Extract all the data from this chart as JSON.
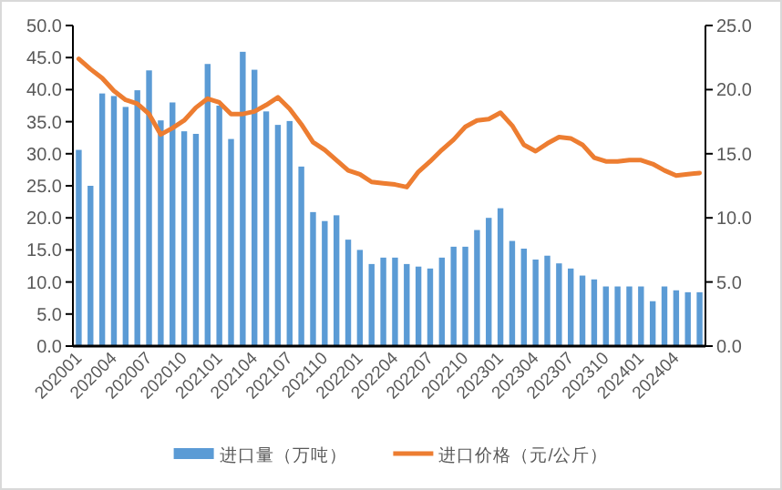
{
  "chart_data": {
    "type": "bar",
    "categories": [
      "202001",
      null,
      null,
      "202004",
      null,
      null,
      "202007",
      null,
      null,
      "202010",
      null,
      null,
      "202101",
      null,
      null,
      "202104",
      null,
      null,
      "202107",
      null,
      null,
      "202110",
      null,
      null,
      "202201",
      null,
      null,
      "202204",
      null,
      null,
      "202207",
      null,
      null,
      "202210",
      null,
      null,
      "202301",
      null,
      null,
      "202304",
      null,
      null,
      "202307",
      null,
      null,
      "202310",
      null,
      null,
      "202401",
      null,
      null,
      "202404",
      null,
      null
    ],
    "series": [
      {
        "name": "进口量（万吨）",
        "color": "#5b9bd5",
        "values": [
          30.6,
          25.0,
          39.4,
          39.0,
          37.3,
          39.9,
          43.0,
          35.2,
          38.0,
          33.5,
          33.1,
          44.0,
          37.5,
          32.3,
          45.9,
          43.1,
          36.6,
          34.5,
          35.1,
          28.0,
          20.9,
          19.5,
          20.4,
          16.6,
          15.0,
          12.8,
          13.8,
          13.8,
          12.8,
          12.4,
          12.1,
          13.8,
          15.5,
          15.5,
          18.1,
          20.0,
          21.5,
          16.4,
          15.2,
          13.5,
          14.1,
          12.9,
          12.1,
          11.0,
          10.4,
          9.3,
          9.3,
          9.3,
          9.3,
          7.0,
          9.3,
          8.7,
          8.4,
          8.4
        ]
      },
      {
        "name": "进口价格（元/公斤）",
        "type": "line",
        "axis": "y2",
        "color": "#ed7d31",
        "values": [
          22.4,
          21.6,
          20.9,
          19.9,
          19.2,
          18.9,
          18.1,
          16.5,
          17.0,
          17.6,
          18.6,
          19.3,
          19.0,
          18.1,
          18.1,
          18.3,
          18.8,
          19.4,
          18.5,
          17.3,
          15.9,
          15.3,
          14.5,
          13.7,
          13.4,
          12.8,
          12.7,
          12.6,
          12.4,
          13.6,
          14.4,
          15.3,
          16.1,
          17.1,
          17.6,
          17.7,
          18.2,
          17.2,
          15.7,
          15.2,
          15.8,
          16.3,
          16.2,
          15.7,
          14.7,
          14.4,
          14.4,
          14.5,
          14.5,
          14.2,
          13.7,
          13.3,
          13.4,
          13.5
        ]
      }
    ],
    "ylim": [
      0,
      50
    ],
    "yticks": [
      {
        "value": 0,
        "label": "0.0"
      },
      {
        "value": 5,
        "label": "5.0"
      },
      {
        "value": 10,
        "label": "10.0"
      },
      {
        "value": 15,
        "label": "15.0"
      },
      {
        "value": 20,
        "label": "20.0"
      },
      {
        "value": 25,
        "label": "25.0"
      },
      {
        "value": 30,
        "label": "30.0"
      },
      {
        "value": 35,
        "label": "35.0"
      },
      {
        "value": 40,
        "label": "40.0"
      },
      {
        "value": 45,
        "label": "45.0"
      },
      {
        "value": 50,
        "label": "50.0"
      }
    ],
    "y2lim": [
      0,
      25
    ],
    "y2ticks": [
      {
        "value": 0,
        "label": "0.0"
      },
      {
        "value": 5,
        "label": "5.0"
      },
      {
        "value": 10,
        "label": "10.0"
      },
      {
        "value": 15,
        "label": "15.0"
      },
      {
        "value": 20,
        "label": "20.0"
      },
      {
        "value": 25,
        "label": "25.0"
      }
    ],
    "legend": "bottom",
    "grid": false
  }
}
